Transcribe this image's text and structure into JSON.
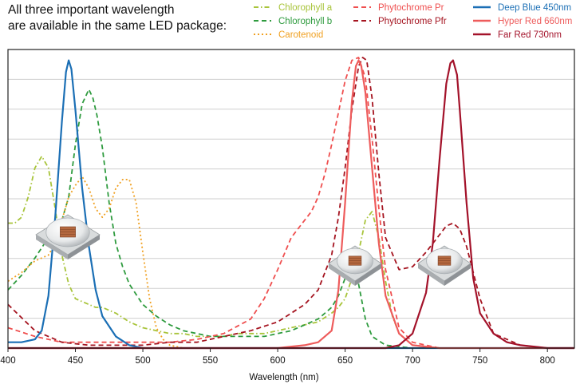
{
  "chart_data": {
    "type": "line",
    "title_lines": [
      "All three important wavelength",
      "are available in the same LED package:"
    ],
    "xlabel": "Wavelength (nm)",
    "ylabel": "",
    "xlim": [
      400,
      820
    ],
    "ylim": [
      0,
      1
    ],
    "x_ticks": [
      400,
      450,
      500,
      550,
      600,
      650,
      700,
      750,
      800
    ],
    "grid": "horizontal",
    "legend_position": "top-right",
    "series": [
      {
        "name": "Chlorophyll a",
        "color": "#a8c43a",
        "style": "dashdot",
        "x": [
          400,
          405,
          410,
          415,
          420,
          425,
          430,
          435,
          440,
          445,
          450,
          455,
          460,
          465,
          470,
          475,
          480,
          490,
          500,
          510,
          520,
          530,
          540,
          550,
          560,
          570,
          580,
          590,
          600,
          610,
          620,
          630,
          640,
          645,
          650,
          655,
          660,
          665,
          670,
          675,
          680,
          685,
          690,
          700,
          720,
          740,
          760,
          780,
          820
        ],
        "y": [
          0.43,
          0.43,
          0.45,
          0.52,
          0.62,
          0.66,
          0.62,
          0.48,
          0.32,
          0.22,
          0.17,
          0.16,
          0.15,
          0.14,
          0.14,
          0.13,
          0.12,
          0.09,
          0.07,
          0.06,
          0.05,
          0.05,
          0.04,
          0.04,
          0.04,
          0.05,
          0.05,
          0.05,
          0.06,
          0.07,
          0.08,
          0.09,
          0.12,
          0.14,
          0.17,
          0.24,
          0.33,
          0.44,
          0.47,
          0.38,
          0.23,
          0.11,
          0.05,
          0.01,
          0,
          0,
          0,
          0,
          0
        ]
      },
      {
        "name": "Chlorophyll b",
        "color": "#2e9b3e",
        "style": "dashed",
        "x": [
          400,
          410,
          420,
          430,
          440,
          445,
          450,
          455,
          460,
          463,
          466,
          470,
          475,
          480,
          485,
          490,
          500,
          510,
          520,
          530,
          540,
          550,
          560,
          570,
          580,
          590,
          600,
          610,
          620,
          630,
          640,
          645,
          650,
          655,
          660,
          665,
          670,
          680,
          700,
          820
        ],
        "y": [
          0.2,
          0.25,
          0.31,
          0.38,
          0.44,
          0.52,
          0.7,
          0.84,
          0.89,
          0.86,
          0.8,
          0.69,
          0.5,
          0.36,
          0.28,
          0.22,
          0.15,
          0.11,
          0.08,
          0.06,
          0.05,
          0.04,
          0.04,
          0.04,
          0.04,
          0.04,
          0.05,
          0.06,
          0.08,
          0.1,
          0.14,
          0.18,
          0.24,
          0.27,
          0.22,
          0.1,
          0.04,
          0.01,
          0,
          0
        ]
      },
      {
        "name": "Carotenoid",
        "color": "#f0a020",
        "style": "dotted",
        "x": [
          400,
          410,
          420,
          425,
          430,
          435,
          440,
          445,
          450,
          455,
          460,
          465,
          470,
          475,
          480,
          485,
          490,
          495,
          500,
          505,
          510,
          515,
          520,
          530,
          560,
          820
        ],
        "y": [
          0.23,
          0.26,
          0.3,
          0.31,
          0.32,
          0.36,
          0.44,
          0.52,
          0.56,
          0.59,
          0.55,
          0.48,
          0.45,
          0.48,
          0.55,
          0.58,
          0.58,
          0.5,
          0.33,
          0.17,
          0.07,
          0.03,
          0.01,
          0,
          0,
          0
        ]
      },
      {
        "name": "Phytochrome Pr",
        "color": "#ef4f4f",
        "style": "dashed",
        "x": [
          400,
          420,
          440,
          460,
          480,
          500,
          520,
          540,
          560,
          580,
          590,
          600,
          610,
          620,
          625,
          630,
          635,
          640,
          645,
          650,
          655,
          660,
          665,
          670,
          675,
          680,
          690,
          700,
          720,
          740,
          760,
          800,
          820
        ],
        "y": [
          0.07,
          0.04,
          0.02,
          0.02,
          0.02,
          0.02,
          0.02,
          0.03,
          0.05,
          0.1,
          0.17,
          0.27,
          0.38,
          0.44,
          0.47,
          0.52,
          0.6,
          0.7,
          0.81,
          0.92,
          0.99,
          1.0,
          0.93,
          0.72,
          0.48,
          0.27,
          0.07,
          0.02,
          0,
          0,
          0,
          0,
          0
        ]
      },
      {
        "name": "Phytochrome Pfr",
        "color": "#a51420",
        "style": "dashed",
        "x": [
          400,
          420,
          440,
          460,
          480,
          500,
          520,
          540,
          560,
          580,
          600,
          610,
          620,
          630,
          640,
          645,
          650,
          655,
          660,
          663,
          666,
          670,
          675,
          680,
          690,
          700,
          710,
          720,
          725,
          730,
          735,
          740,
          750,
          760,
          780,
          800,
          820
        ],
        "y": [
          0.15,
          0.06,
          0.02,
          0.01,
          0.01,
          0.01,
          0.02,
          0.02,
          0.04,
          0.06,
          0.09,
          0.12,
          0.15,
          0.2,
          0.32,
          0.45,
          0.62,
          0.82,
          0.97,
          1.0,
          0.99,
          0.86,
          0.6,
          0.38,
          0.27,
          0.28,
          0.33,
          0.39,
          0.42,
          0.43,
          0.41,
          0.35,
          0.17,
          0.05,
          0.01,
          0,
          0
        ]
      },
      {
        "name": "Deep Blue 450nm",
        "color": "#1b6fb5",
        "style": "solid",
        "x": [
          400,
          410,
          420,
          425,
          430,
          435,
          440,
          443,
          445,
          447,
          450,
          455,
          460,
          465,
          470,
          480,
          490,
          500,
          520,
          820
        ],
        "y": [
          0.02,
          0.02,
          0.03,
          0.06,
          0.18,
          0.45,
          0.78,
          0.95,
          0.99,
          0.96,
          0.82,
          0.55,
          0.35,
          0.2,
          0.11,
          0.04,
          0.01,
          0,
          0,
          0
        ]
      },
      {
        "name": "Hyper Red 660nm",
        "color": "#ee5c5c",
        "style": "solid",
        "x": [
          400,
          600,
          620,
          630,
          640,
          645,
          650,
          655,
          658,
          660,
          662,
          665,
          670,
          675,
          680,
          690,
          700,
          720,
          820
        ],
        "y": [
          0,
          0,
          0.01,
          0.02,
          0.06,
          0.2,
          0.5,
          0.85,
          0.97,
          0.99,
          0.97,
          0.88,
          0.62,
          0.36,
          0.18,
          0.05,
          0.01,
          0,
          0
        ]
      },
      {
        "name": "Far Red 730nm",
        "color": "#a3122a",
        "style": "solid",
        "x": [
          400,
          680,
          690,
          700,
          710,
          715,
          720,
          725,
          728,
          730,
          733,
          735,
          740,
          745,
          750,
          760,
          770,
          780,
          800,
          820
        ],
        "y": [
          0,
          0,
          0.01,
          0.05,
          0.19,
          0.36,
          0.65,
          0.91,
          0.98,
          0.99,
          0.94,
          0.82,
          0.5,
          0.24,
          0.12,
          0.05,
          0.02,
          0.01,
          0,
          0
        ]
      }
    ]
  },
  "icons": {
    "led_packages": [
      "led-package-icon",
      "led-package-icon",
      "led-package-icon"
    ]
  }
}
